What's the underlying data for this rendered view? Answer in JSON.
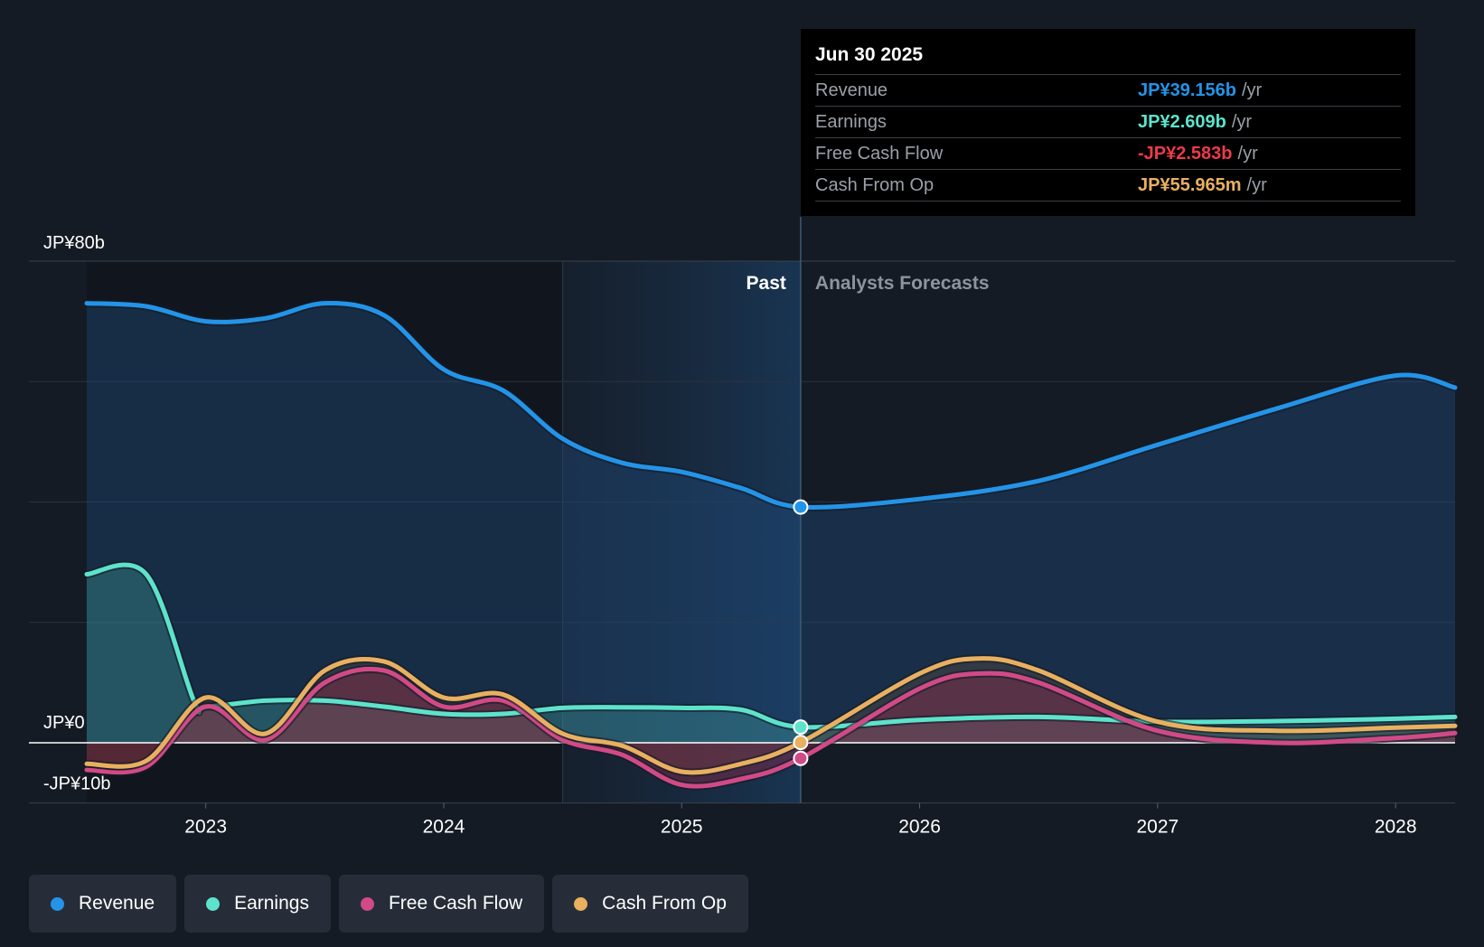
{
  "colors": {
    "background": "#151b24",
    "revenue": "#2394e8",
    "earnings": "#5de3cc",
    "fcf": "#d14a87",
    "cfo": "#e8b060",
    "negative": "#ec3b4a"
  },
  "tooltip": {
    "date": "Jun 30 2025",
    "rows": [
      {
        "label": "Revenue",
        "value": "JP¥39.156b",
        "unit": "/yr"
      },
      {
        "label": "Earnings",
        "value": "JP¥2.609b",
        "unit": "/yr"
      },
      {
        "label": "Free Cash Flow",
        "value": "-JP¥2.583b",
        "unit": "/yr"
      },
      {
        "label": "Cash From Op",
        "value": "JP¥55.965m",
        "unit": "/yr"
      }
    ]
  },
  "legend": [
    {
      "label": "Revenue"
    },
    {
      "label": "Earnings"
    },
    {
      "label": "Free Cash Flow"
    },
    {
      "label": "Cash From Op"
    }
  ],
  "chart_data": {
    "type": "line",
    "y_unit": "JP¥ billions",
    "ylim": [
      -10,
      80
    ],
    "y_labels": [
      {
        "value": 80,
        "label": "JP¥80b"
      },
      {
        "value": 0,
        "label": "JP¥0"
      },
      {
        "value": -10,
        "label": "-JP¥10b"
      }
    ],
    "gridlines": [
      60,
      40,
      20
    ],
    "xlim": [
      2022.5,
      2028.25
    ],
    "x_ticks": [
      {
        "value": 2023,
        "label": "2023"
      },
      {
        "value": 2024,
        "label": "2024"
      },
      {
        "value": 2025,
        "label": "2025"
      },
      {
        "value": 2026,
        "label": "2026"
      },
      {
        "value": 2027,
        "label": "2027"
      },
      {
        "value": 2028,
        "label": "2028"
      }
    ],
    "past_label": "Past",
    "forecast_label": "Analysts Forecasts",
    "divider_x": 2025.5,
    "highlight_start_x": 2024.5,
    "series": [
      {
        "name": "Revenue",
        "key": "revenue",
        "x": [
          2022.5,
          2022.75,
          2023.0,
          2023.25,
          2023.5,
          2023.75,
          2024.0,
          2024.25,
          2024.5,
          2024.75,
          2025.0,
          2025.25,
          2025.5,
          2026.0,
          2026.5,
          2027.0,
          2027.5,
          2028.0,
          2028.25
        ],
        "values": [
          73.0,
          72.5,
          70.0,
          70.5,
          73.0,
          71.0,
          62.0,
          58.5,
          50.5,
          46.5,
          45.0,
          42.3,
          39.156,
          40.5,
          43.5,
          49.5,
          55.5,
          61.0,
          59.0
        ]
      },
      {
        "name": "Earnings",
        "key": "earnings",
        "x": [
          2022.5,
          2022.75,
          2022.95,
          2023.0,
          2023.25,
          2023.5,
          2023.75,
          2024.0,
          2024.25,
          2024.5,
          2024.75,
          2025.0,
          2025.25,
          2025.5,
          2026.0,
          2026.5,
          2027.0,
          2027.5,
          2028.0,
          2028.25
        ],
        "values": [
          28.0,
          28.0,
          7.0,
          6.0,
          7.0,
          7.0,
          6.0,
          4.8,
          4.8,
          5.8,
          5.9,
          5.8,
          5.5,
          2.609,
          3.8,
          4.3,
          3.5,
          3.6,
          4.0,
          4.3
        ]
      },
      {
        "name": "Free Cash Flow",
        "key": "fcf",
        "x": [
          2022.5,
          2022.75,
          2023.0,
          2023.25,
          2023.5,
          2023.75,
          2024.0,
          2024.25,
          2024.5,
          2024.75,
          2025.0,
          2025.25,
          2025.5,
          2026.0,
          2026.25,
          2026.5,
          2027.0,
          2027.5,
          2028.0,
          2028.25
        ],
        "values": [
          -4.5,
          -4.0,
          6.0,
          0.5,
          10.0,
          12.0,
          6.0,
          7.0,
          0.5,
          -2.0,
          -7.0,
          -6.0,
          -2.583,
          9.0,
          11.5,
          10.0,
          2.0,
          0.0,
          0.8,
          1.6
        ]
      },
      {
        "name": "Cash From Op",
        "key": "cfo",
        "x": [
          2022.5,
          2022.75,
          2023.0,
          2023.25,
          2023.5,
          2023.75,
          2024.0,
          2024.25,
          2024.5,
          2024.75,
          2025.0,
          2025.25,
          2025.5,
          2026.0,
          2026.25,
          2026.5,
          2027.0,
          2027.5,
          2028.0,
          2028.25
        ],
        "values": [
          -3.5,
          -3.0,
          7.5,
          1.5,
          12.0,
          13.5,
          7.5,
          8.0,
          1.5,
          -0.5,
          -4.8,
          -3.5,
          0.056,
          11.5,
          14.0,
          12.0,
          3.5,
          2.0,
          2.5,
          2.8
        ]
      }
    ]
  }
}
